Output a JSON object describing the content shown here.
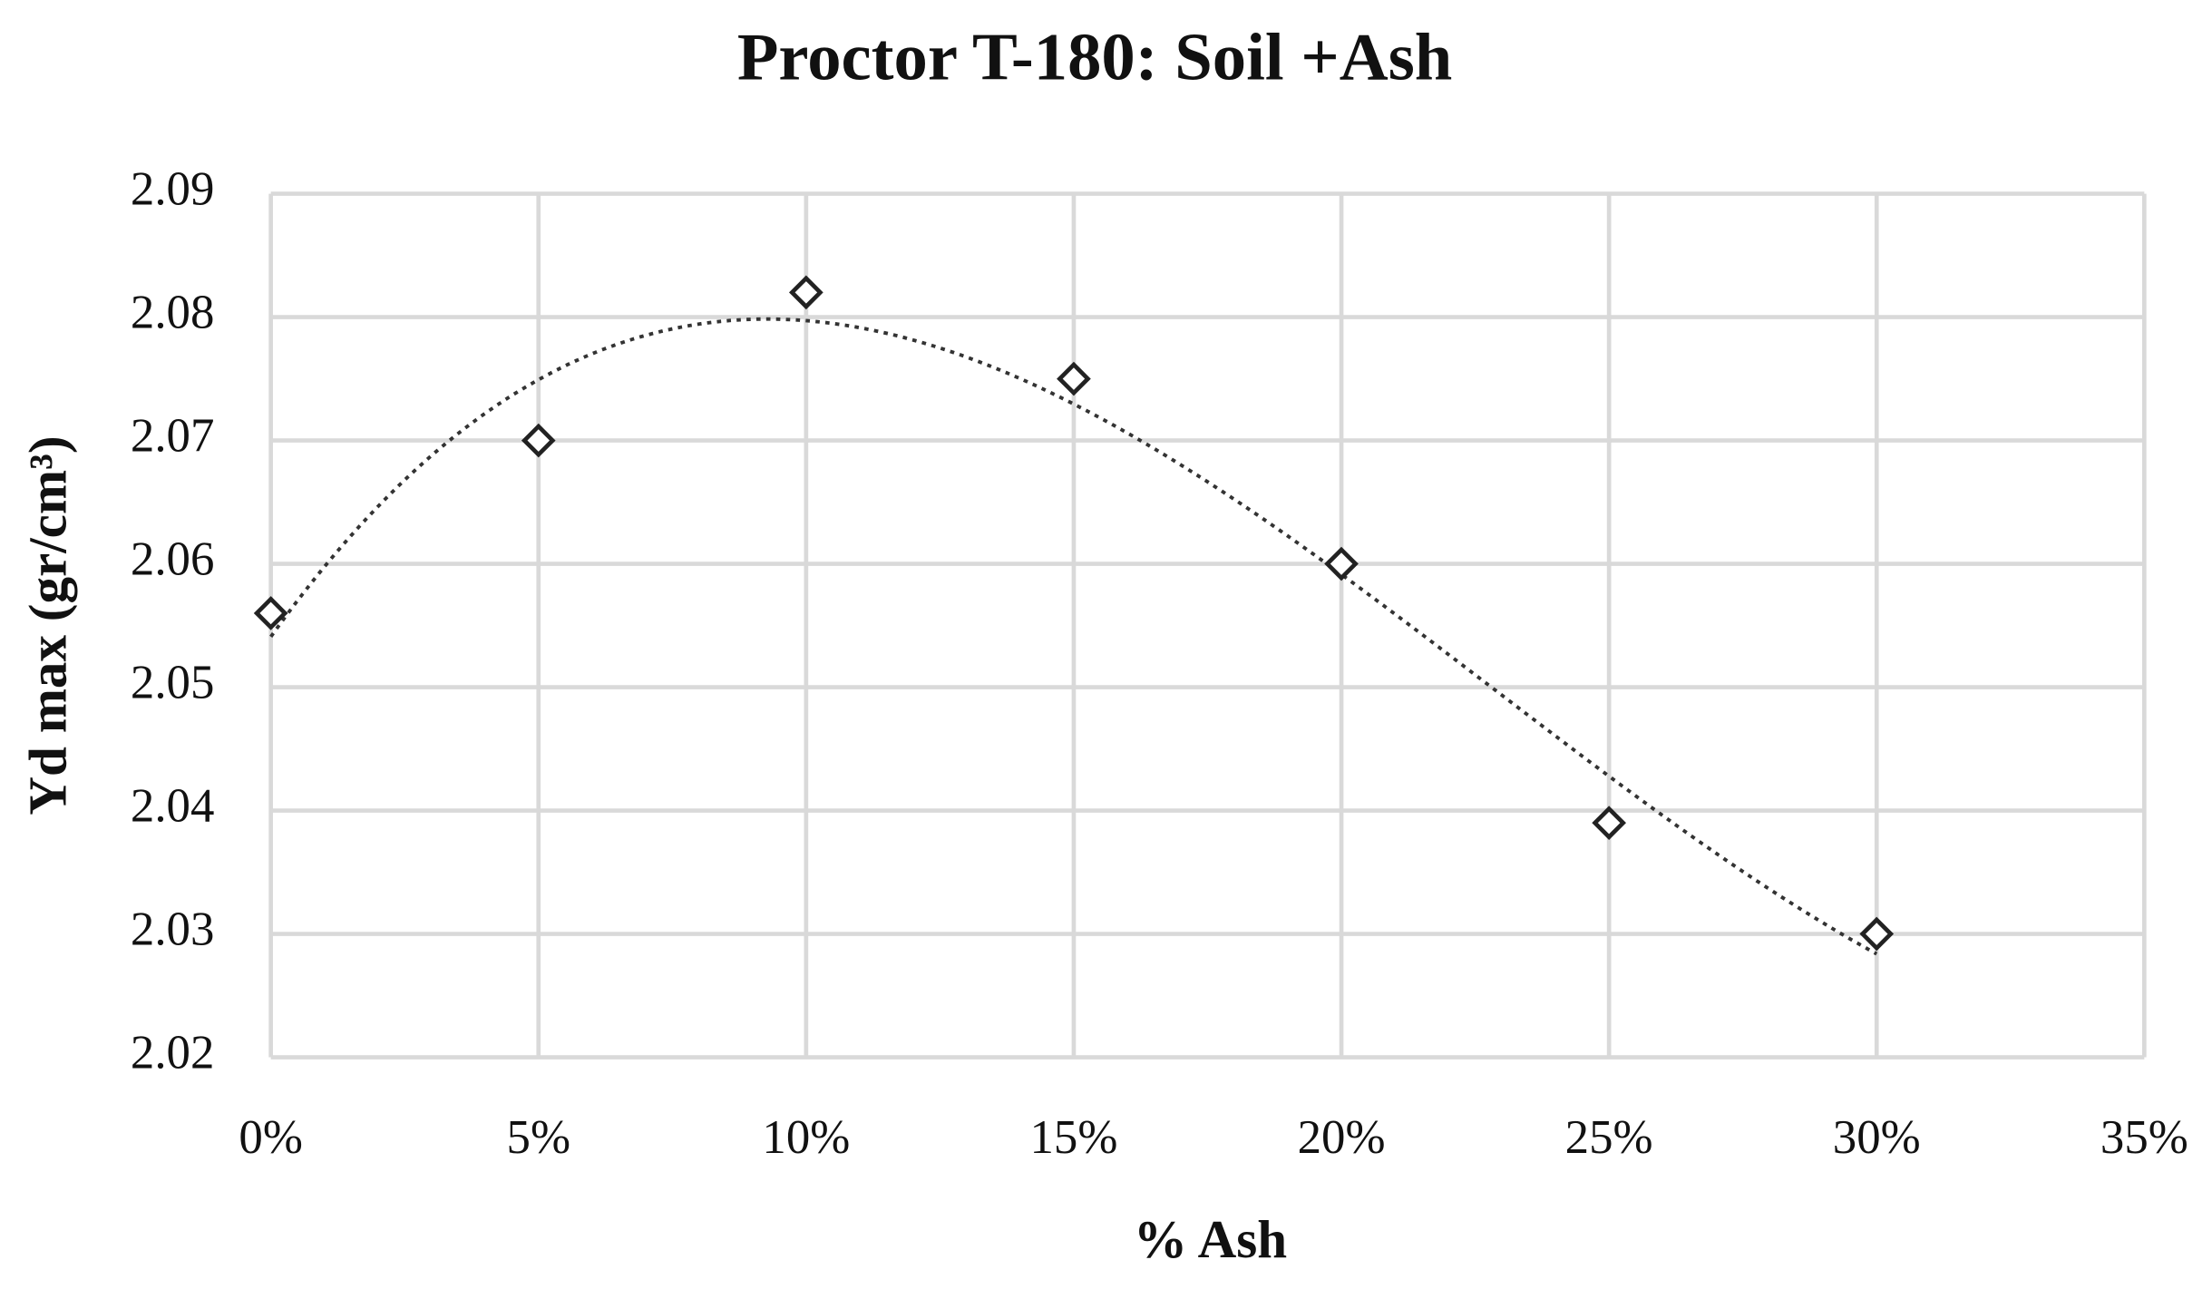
{
  "chart_data": {
    "type": "scatter",
    "title": "Proctor T-180: Soil +Ash",
    "x_label": "% Ash",
    "y_label": "Yd max (gr/cm³)",
    "series": [
      {
        "color": "#222222",
        "x": [
          0,
          5,
          10,
          15,
          20,
          25,
          30
        ],
        "values": [
          2.056,
          2.07,
          2.082,
          2.075,
          2.06,
          2.039,
          2.03
        ]
      }
    ],
    "xlim": [
      0,
      35
    ],
    "xticks": [
      {
        "value": 0,
        "label": "0%"
      },
      {
        "value": 5,
        "label": "5%"
      },
      {
        "value": 10,
        "label": "10%"
      },
      {
        "value": 15,
        "label": "15%"
      },
      {
        "value": 20,
        "label": "20%"
      },
      {
        "value": 25,
        "label": "25%"
      },
      {
        "value": 30,
        "label": "30%"
      },
      {
        "value": 35,
        "label": "35%"
      }
    ],
    "ylim": [
      2.02,
      2.09
    ],
    "yticks": [
      2.02,
      2.03,
      2.04,
      2.05,
      2.06,
      2.07,
      2.08,
      2.09
    ],
    "grid": true,
    "trendline": "polynomial"
  }
}
